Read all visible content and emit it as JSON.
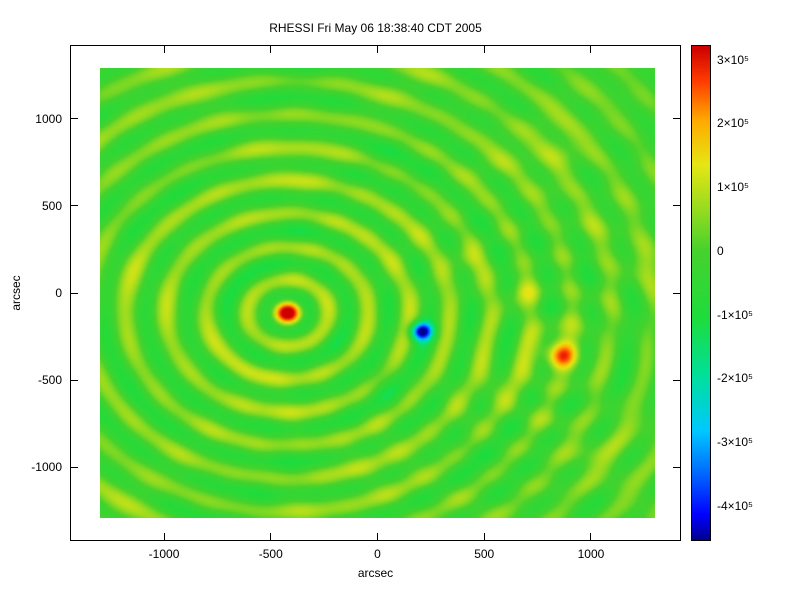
{
  "title": "RHESSI Fri May 06 18:38:40 CDT 2005",
  "x_axis": {
    "label": "arcsec",
    "ticks": [
      {
        "value": -1000,
        "label": "-1000"
      },
      {
        "value": -500,
        "label": "-500"
      },
      {
        "value": 0,
        "label": "0"
      },
      {
        "value": 500,
        "label": "500"
      },
      {
        "value": 1000,
        "label": "1000"
      }
    ]
  },
  "y_axis": {
    "label": "arcsec",
    "ticks": [
      {
        "value": 1000,
        "label": "1000"
      },
      {
        "value": 500,
        "label": "500"
      },
      {
        "value": 0,
        "label": "0"
      },
      {
        "value": -500,
        "label": "-500"
      },
      {
        "value": -1000,
        "label": "-1000"
      }
    ]
  },
  "colorbar": {
    "ticks": [
      {
        "value": 300000,
        "label": "3×10⁵"
      },
      {
        "value": 200000,
        "label": "2×10⁵"
      },
      {
        "value": 100000,
        "label": "1×10⁵"
      },
      {
        "value": 0,
        "label": "0"
      },
      {
        "value": -100000,
        "label": "-1×10⁵"
      },
      {
        "value": -200000,
        "label": "-2×10⁵"
      },
      {
        "value": -300000,
        "label": "-3×10⁵"
      },
      {
        "value": -400000,
        "label": "-4×10⁵"
      }
    ]
  },
  "chart_data": {
    "type": "heatmap",
    "title": "RHESSI Fri May 06 18:38:40 CDT 2005",
    "xlabel": "arcsec",
    "ylabel": "arcsec",
    "x_range": [
      -1300,
      1300
    ],
    "y_range": [
      -1290,
      1290
    ],
    "value_range": [
      -455000,
      323000
    ],
    "grid": false,
    "legend_position": "colorbar-right",
    "colormap_stops": [
      [
        0.0,
        "#000090"
      ],
      [
        0.05,
        "#0000ff"
      ],
      [
        0.13,
        "#0064ff"
      ],
      [
        0.22,
        "#00c8ff"
      ],
      [
        0.33,
        "#00e09d"
      ],
      [
        0.45,
        "#1edc3c"
      ],
      [
        0.585,
        "#46d22d"
      ],
      [
        0.68,
        "#a0dc1e"
      ],
      [
        0.76,
        "#e6e614"
      ],
      [
        0.85,
        "#ffaa00"
      ],
      [
        0.93,
        "#ff3c00"
      ],
      [
        1.0,
        "#cd0000"
      ]
    ],
    "sources": [
      {
        "name": "main-positive-source",
        "x": -420,
        "y": -115,
        "amp": 330000,
        "sigma": 50,
        "ring_amp": 100000,
        "ring_spacing": 190,
        "ring_decay": 2500
      },
      {
        "name": "compact-negative-source",
        "x": 205,
        "y": -220,
        "amp": -440000,
        "sigma": 36,
        "ring_amp": 0,
        "ring_spacing": 190,
        "ring_decay": 400
      },
      {
        "name": "secondary-positive-source",
        "x": 865,
        "y": -360,
        "amp": 190000,
        "sigma": 65,
        "ring_amp": 40000,
        "ring_spacing": 190,
        "ring_decay": 800
      },
      {
        "name": "faint-blob-1",
        "x": 690,
        "y": 20,
        "amp": 75000,
        "sigma": 55,
        "ring_amp": 0,
        "ring_spacing": 190,
        "ring_decay": 400
      },
      {
        "name": "faint-blob-2",
        "x": 855,
        "y": 820,
        "amp": 65000,
        "sigma": 70,
        "ring_amp": 0,
        "ring_spacing": 190,
        "ring_decay": 400
      },
      {
        "name": "faint-blob-3",
        "x": 430,
        "y": 190,
        "amp": 60000,
        "sigma": 50,
        "ring_amp": 0,
        "ring_spacing": 190,
        "ring_decay": 400
      }
    ],
    "texture_amp": 52000
  }
}
